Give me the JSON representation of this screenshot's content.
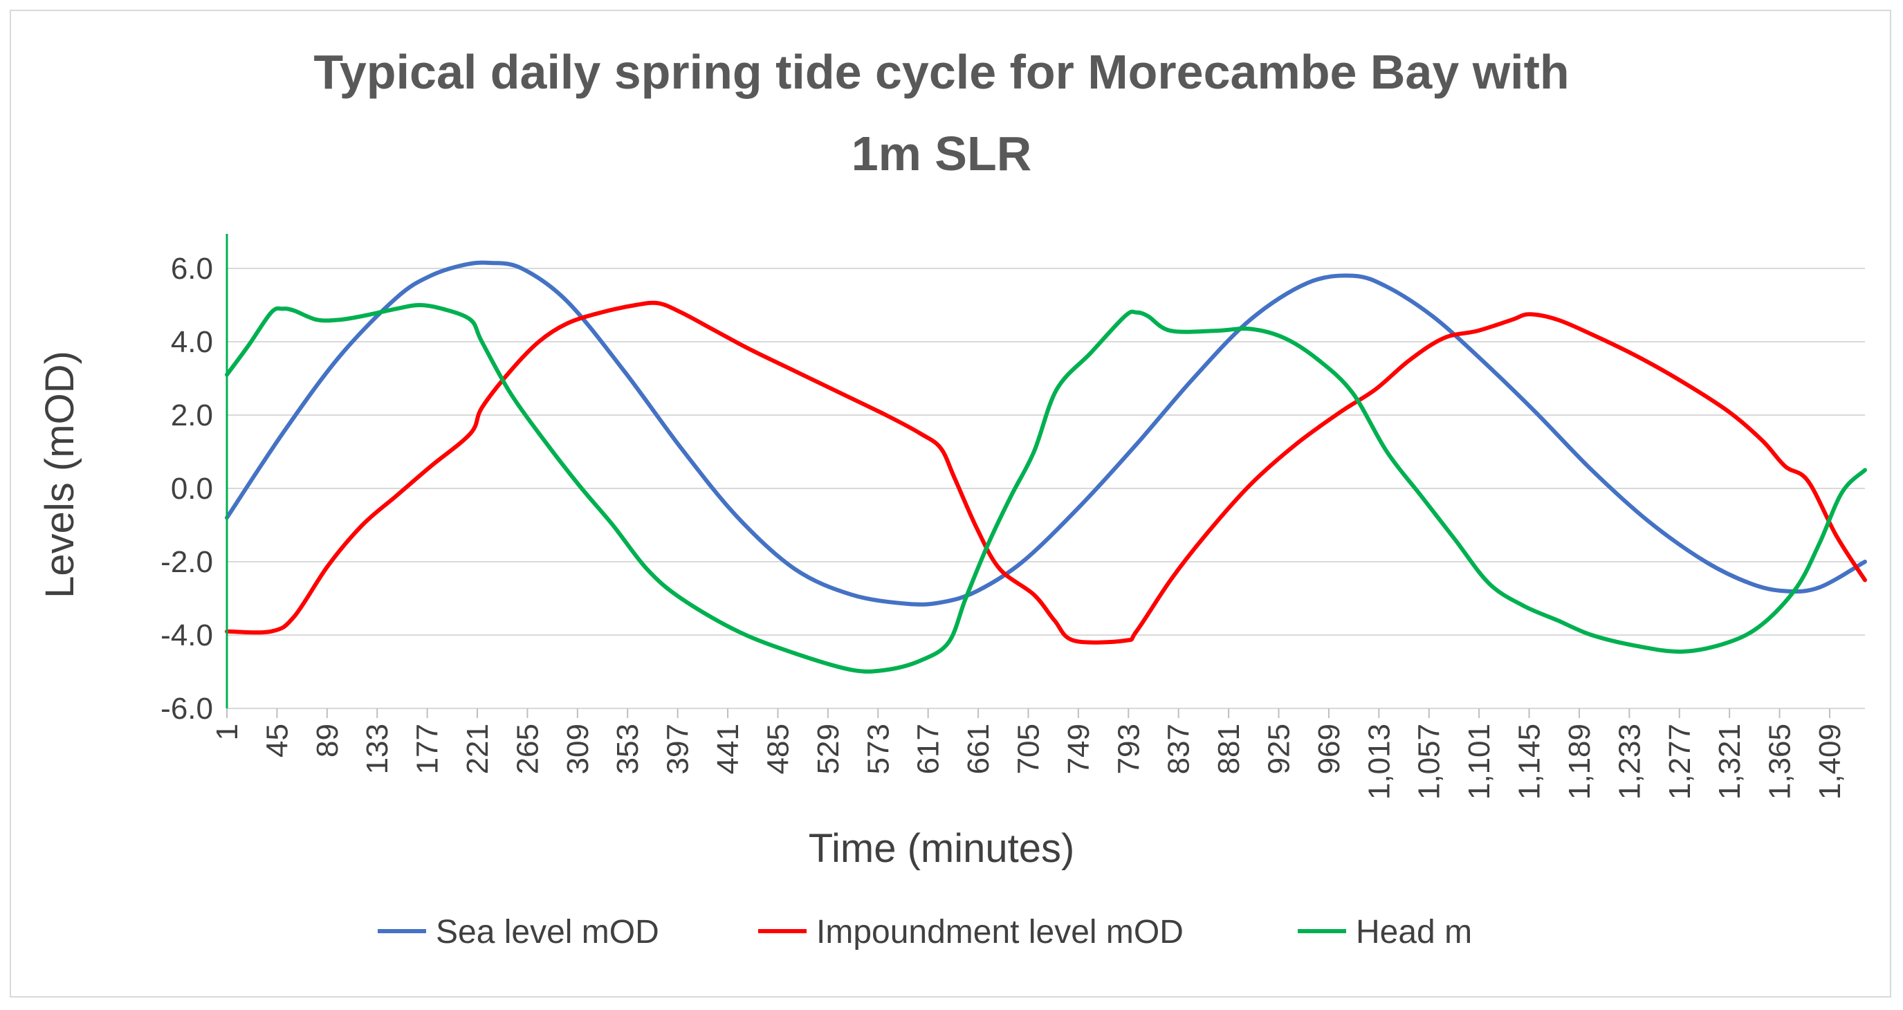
{
  "chart_data": {
    "type": "line",
    "title_lines": [
      "Typical daily spring tide cycle for Morecambe Bay with",
      "1m SLR"
    ],
    "xlabel": "Time (minutes)",
    "ylabel": "Levels (mOD)",
    "ylim": [
      -6,
      7
    ],
    "xlim": [
      1,
      1440
    ],
    "yticks": [
      6,
      4,
      2,
      0,
      -2,
      -4,
      -6
    ],
    "ytick_labels": [
      "6.0",
      "4.0",
      "2.0",
      "0.0",
      "-2.0",
      "-4.0",
      "-6.0"
    ],
    "xticks": [
      1,
      45,
      89,
      133,
      177,
      221,
      265,
      309,
      353,
      397,
      441,
      485,
      529,
      573,
      617,
      661,
      705,
      749,
      793,
      837,
      881,
      925,
      969,
      1013,
      1057,
      1101,
      1145,
      1189,
      1233,
      1277,
      1321,
      1365,
      1409
    ],
    "xtick_labels": [
      "1",
      "45",
      "89",
      "133",
      "177",
      "221",
      "265",
      "309",
      "353",
      "397",
      "441",
      "485",
      "529",
      "573",
      "617",
      "661",
      "705",
      "749",
      "793",
      "837",
      "881",
      "925",
      "969",
      "1,013",
      "1,057",
      "1,101",
      "1,145",
      "1,189",
      "1,233",
      "1,277",
      "1,321",
      "1,365",
      "1,409"
    ],
    "legend_position": "bottom",
    "series": [
      {
        "name": "Sea level mOD",
        "color": "#4472C4",
        "x": [
          1,
          50,
          100,
          150,
          180,
          210,
          232,
          260,
          300,
          350,
          400,
          450,
          500,
          550,
          600,
          630,
          660,
          700,
          750,
          800,
          850,
          900,
          950,
          990,
          1020,
          1060,
          1100,
          1150,
          1200,
          1250,
          1300,
          1340,
          1370,
          1400,
          1440
        ],
        "y": [
          -0.8,
          1.5,
          3.6,
          5.2,
          5.8,
          6.1,
          6.15,
          6.0,
          5.1,
          3.2,
          1.1,
          -0.8,
          -2.2,
          -2.9,
          -3.15,
          -3.1,
          -2.8,
          -2.0,
          -0.5,
          1.2,
          3.0,
          4.6,
          5.6,
          5.8,
          5.5,
          4.7,
          3.6,
          2.1,
          0.5,
          -0.9,
          -2.0,
          -2.6,
          -2.8,
          -2.7,
          -2.0
        ]
      },
      {
        "name": "Impoundment level mOD",
        "color": "#FF0000",
        "x": [
          1,
          40,
          60,
          90,
          120,
          150,
          180,
          215,
          225,
          250,
          275,
          300,
          330,
          360,
          380,
          400,
          430,
          460,
          500,
          540,
          580,
          610,
          628,
          640,
          660,
          680,
          710,
          728,
          745,
          790,
          800,
          830,
          860,
          900,
          940,
          980,
          1010,
          1040,
          1070,
          1100,
          1130,
          1145,
          1170,
          1200,
          1240,
          1280,
          1320,
          1350,
          1370,
          1390,
          1415,
          1440
        ],
        "y": [
          -3.9,
          -3.9,
          -3.5,
          -2.1,
          -1.0,
          -0.2,
          0.6,
          1.5,
          2.2,
          3.2,
          4.0,
          4.5,
          4.8,
          5.0,
          5.05,
          4.8,
          4.3,
          3.8,
          3.2,
          2.6,
          2.0,
          1.5,
          1.1,
          0.3,
          -1.1,
          -2.2,
          -2.9,
          -3.6,
          -4.15,
          -4.15,
          -3.9,
          -2.5,
          -1.3,
          0.1,
          1.2,
          2.1,
          2.7,
          3.5,
          4.1,
          4.3,
          4.6,
          4.75,
          4.6,
          4.2,
          3.6,
          2.9,
          2.1,
          1.3,
          0.6,
          0.2,
          -1.3,
          -2.5
        ]
      },
      {
        "name": "Head m",
        "color": "#00B050",
        "x": [
          1,
          20,
          40,
          50,
          60,
          80,
          100,
          120,
          150,
          170,
          190,
          215,
          225,
          250,
          280,
          310,
          340,
          370,
          400,
          450,
          500,
          550,
          580,
          610,
          635,
          650,
          670,
          690,
          710,
          730,
          760,
          790,
          800,
          810,
          830,
          870,
          900,
          930,
          960,
          990,
          1020,
          1050,
          1080,
          1110,
          1140,
          1170,
          1200,
          1240,
          1280,
          1320,
          1350,
          1380,
          1400,
          1420,
          1440
        ],
        "y": [
          3.1,
          3.9,
          4.8,
          4.9,
          4.85,
          4.6,
          4.6,
          4.7,
          4.9,
          5.0,
          4.9,
          4.6,
          4.0,
          2.6,
          1.3,
          0.1,
          -1.0,
          -2.2,
          -3.0,
          -3.9,
          -4.5,
          -4.95,
          -4.95,
          -4.7,
          -4.2,
          -3.0,
          -1.5,
          -0.2,
          1.0,
          2.7,
          3.7,
          4.7,
          4.8,
          4.7,
          4.3,
          4.3,
          4.35,
          4.1,
          3.5,
          2.6,
          1.0,
          -0.2,
          -1.4,
          -2.6,
          -3.2,
          -3.6,
          -4.0,
          -4.3,
          -4.45,
          -4.2,
          -3.7,
          -2.7,
          -1.5,
          -0.1,
          0.5
        ]
      }
    ]
  }
}
